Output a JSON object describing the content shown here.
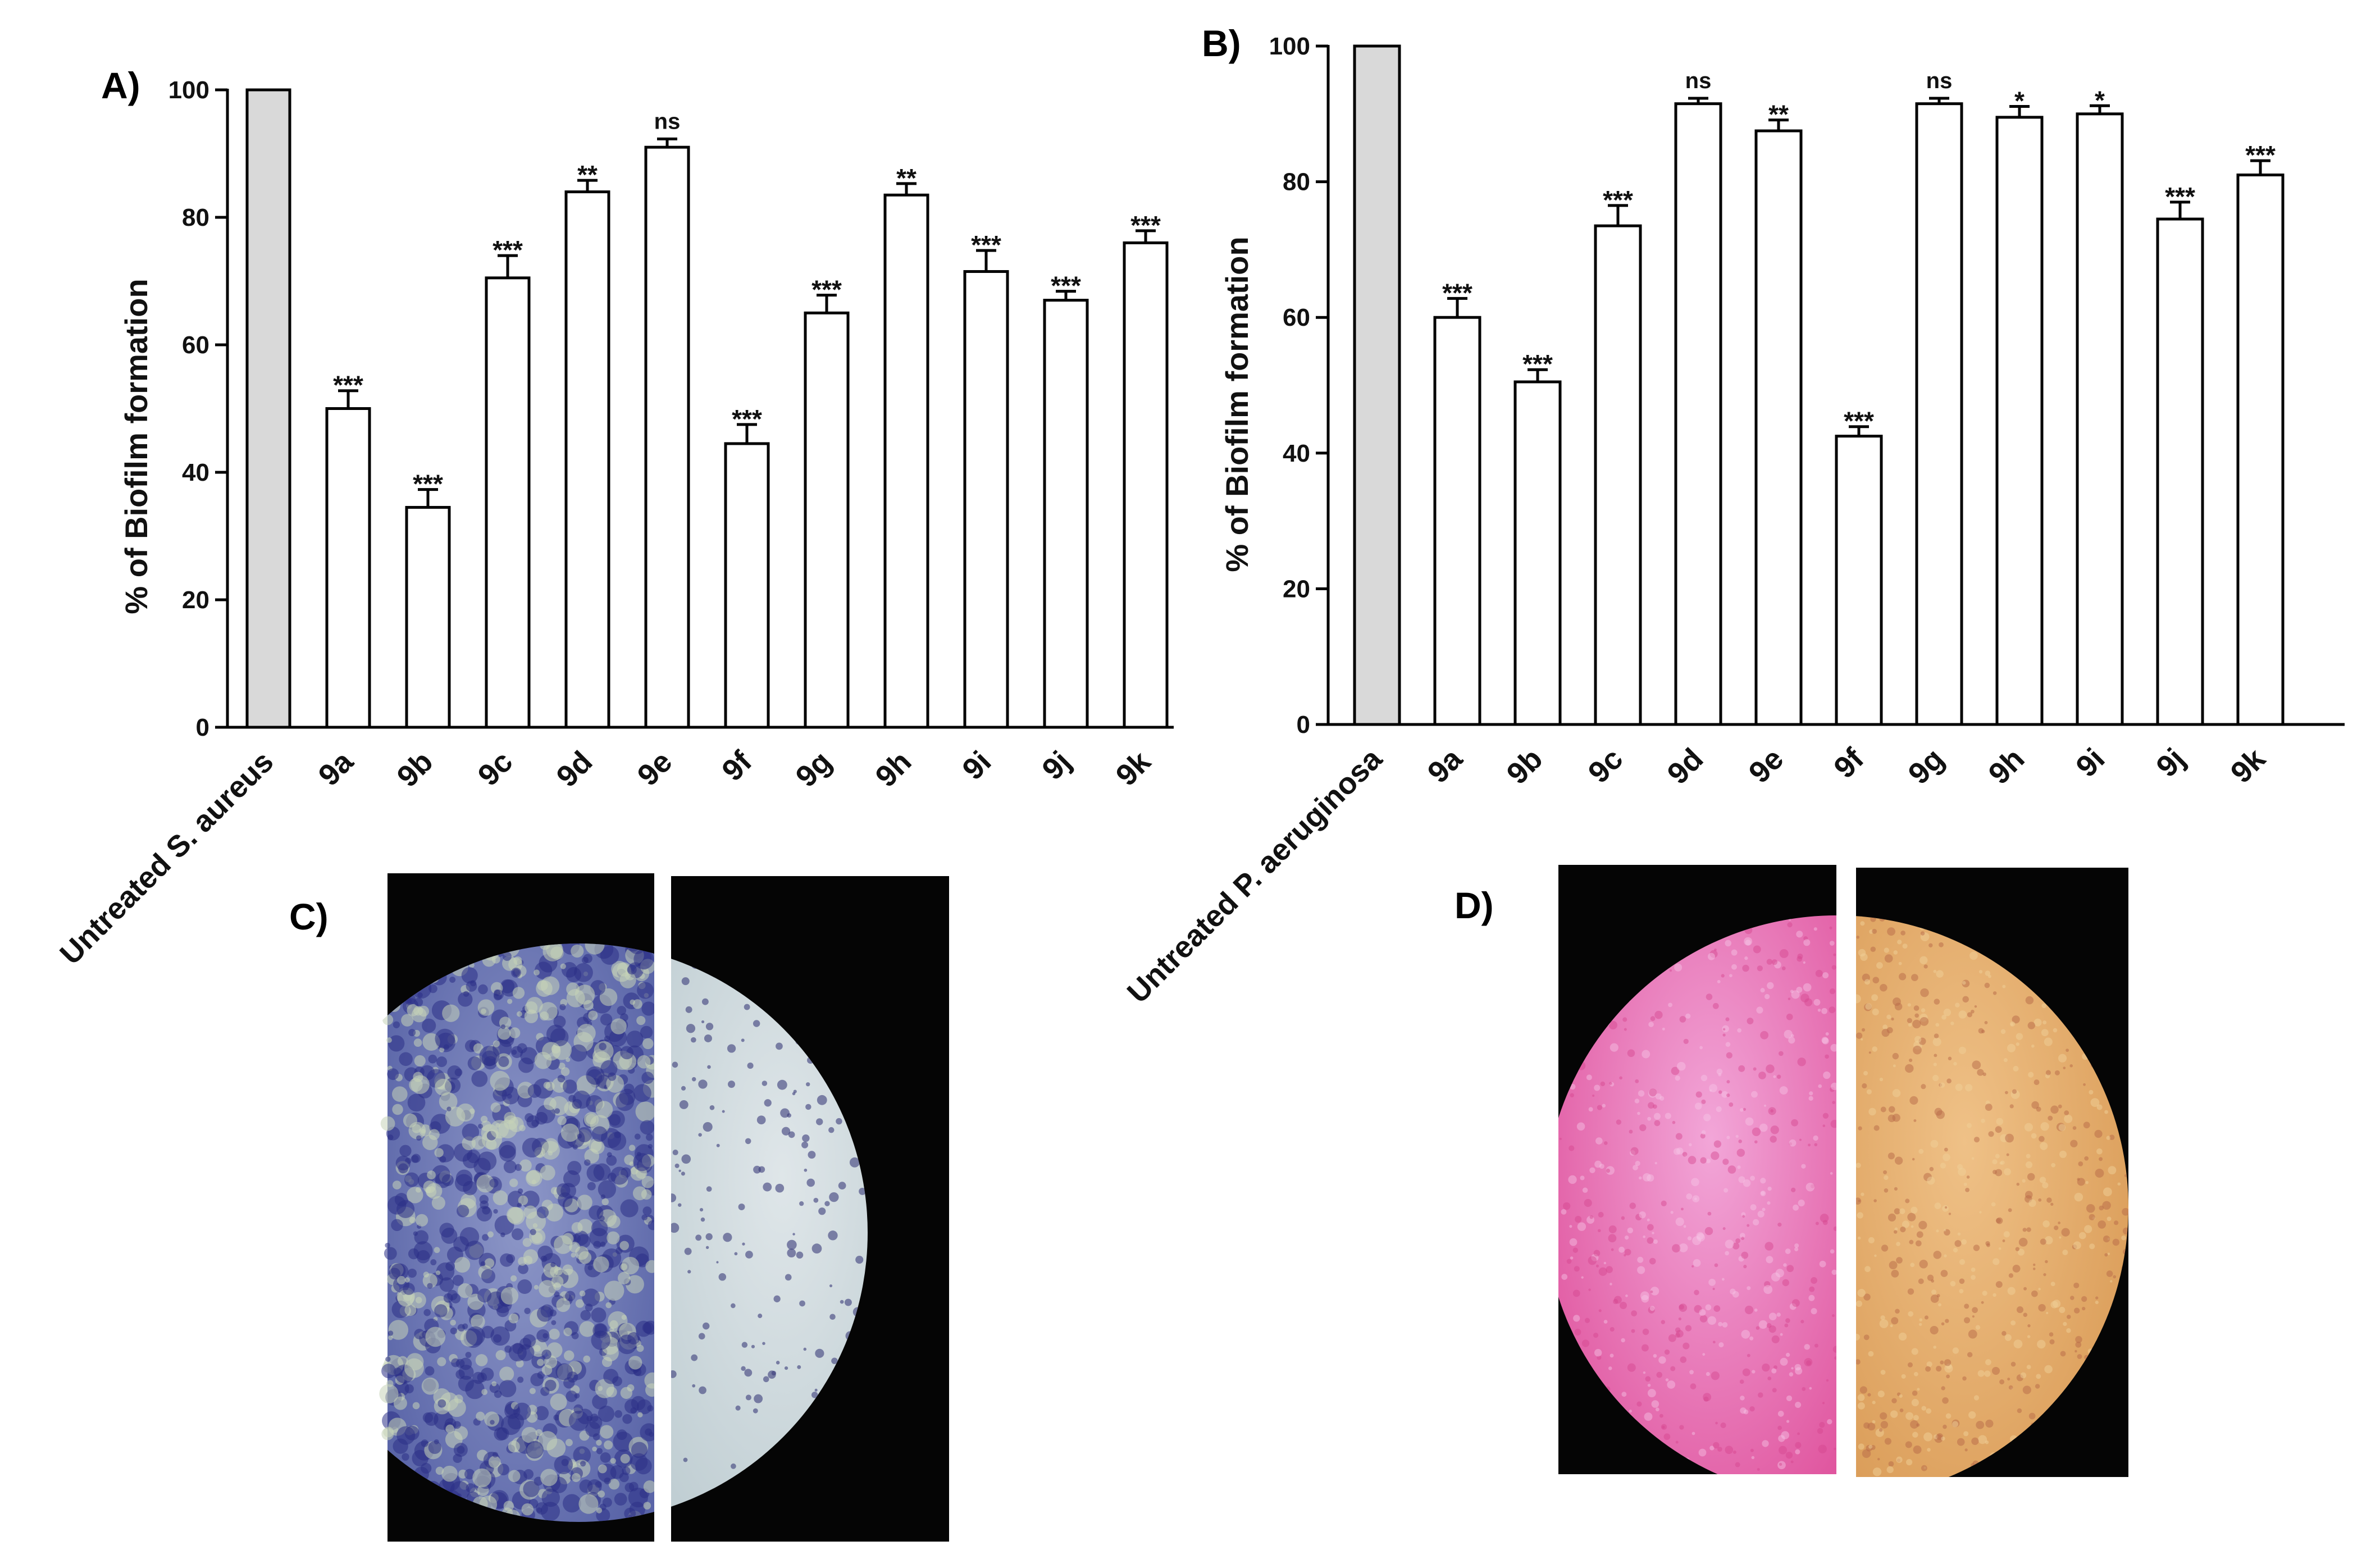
{
  "panels": {
    "a": "A)",
    "b": "B)",
    "c": "C)",
    "d": "D)"
  },
  "colors": {
    "control_fill": "#d9d9d9",
    "bar_fill": "#ffffff",
    "stroke": "#000000"
  },
  "chart_data": [
    {
      "type": "bar",
      "panel": "A)",
      "ylabel": "% of Biofilm formation",
      "xlabel": "",
      "ylim": [
        0,
        100
      ],
      "yticks": [
        0,
        20,
        40,
        60,
        80,
        100
      ],
      "categories": [
        "Untreated S. aureus",
        "9a",
        "9b",
        "9c",
        "9d",
        "9e",
        "9f",
        "9g",
        "9h",
        "9i",
        "9j",
        "9k"
      ],
      "values": [
        100,
        50,
        34.5,
        70.5,
        84,
        91,
        44.5,
        65,
        83.5,
        71.5,
        67,
        76
      ],
      "errors": [
        0,
        2.8,
        2.8,
        3.5,
        1.8,
        1.3,
        3,
        2.8,
        1.8,
        3.3,
        1.4,
        1.9
      ],
      "significance": [
        "",
        "***",
        "***",
        "***",
        "**",
        "ns",
        "***",
        "***",
        "**",
        "***",
        "***",
        "***"
      ]
    },
    {
      "type": "bar",
      "panel": "B)",
      "ylabel": "% of Biofilm formation",
      "xlabel": "",
      "ylim": [
        0,
        100
      ],
      "yticks": [
        0,
        20,
        40,
        60,
        80,
        100
      ],
      "categories": [
        "Untreated P. aeruginosa",
        "9a",
        "9b",
        "9c",
        "9d",
        "9e",
        "9f",
        "9g",
        "9h",
        "9i",
        "9j",
        "9k"
      ],
      "values": [
        100,
        60,
        50.5,
        73.5,
        91.5,
        87.5,
        42.5,
        91.5,
        89.5,
        90,
        74.5,
        81
      ],
      "errors": [
        0,
        2.8,
        1.8,
        3,
        0.8,
        1.6,
        1.4,
        0.8,
        1.6,
        1.2,
        2.5,
        2.1
      ],
      "significance": [
        "",
        "***",
        "***",
        "***",
        "ns",
        "**",
        "***",
        "ns",
        "*",
        "*",
        "***",
        "***"
      ]
    }
  ]
}
